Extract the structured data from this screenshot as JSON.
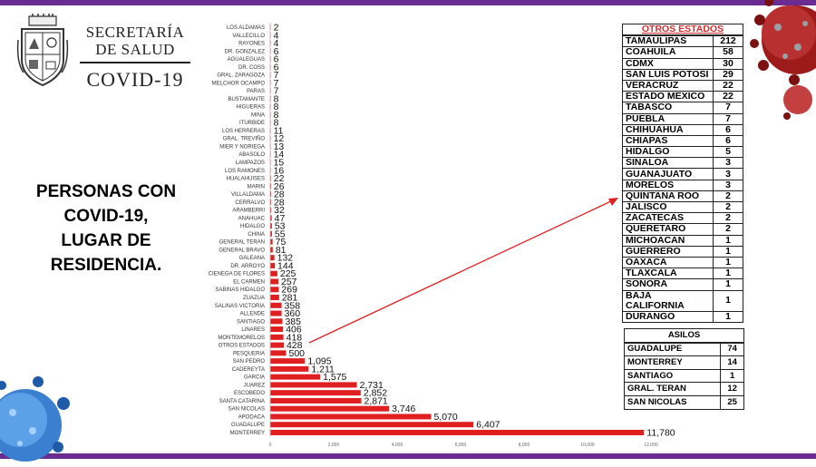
{
  "header": {
    "org_line1": "SECRETARÍA",
    "org_line2": "DE SALUD",
    "org_line3": "COVID-19"
  },
  "headline": {
    "line1": "PERSONAS CON",
    "line2": "COVID-19,",
    "line3": "LUGAR DE",
    "line4": "RESIDENCIA."
  },
  "chart_data": {
    "type": "bar",
    "orientation": "horizontal",
    "categories": [
      "LOS ALDAMAS",
      "VALLECILLO",
      "RAYONES",
      "DR. GONZALEZ",
      "AGUALEGUAS",
      "DR. COSS",
      "GRAL. ZARAGOZA",
      "MELCHOR OCAMPO",
      "PARAS",
      "BUSTAMANTE",
      "HIGUERAS",
      "MINA",
      "ITURBIDE",
      "LOS HERRERAS",
      "GRAL. TREVIÑO",
      "MIER Y NORIEGA",
      "ABASOLO",
      "LAMPAZOS",
      "LOS RAMONES",
      "HUALAHUISES",
      "MARIN",
      "VILLALDAMA",
      "CERRALVO",
      "ARAMBERRI",
      "ANAHUAC",
      "HIDALGO",
      "CHINA",
      "GENERAL TERAN",
      "GENERAL BRAVO",
      "GALEANA",
      "DR. ARROYO",
      "CIENEGA DE FLORES",
      "EL CARMEN",
      "SABINAS HIDALGO",
      "ZUAZUA",
      "SALINAS VICTORIA",
      "ALLENDE",
      "SANTIAGO",
      "LINARES",
      "MONTEMORELOS",
      "OTROS ESTADOS",
      "PESQUERIA",
      "SAN PEDRO",
      "CADEREYTA",
      "GARCIA",
      "JUAREZ",
      "ESCOBEDO",
      "SANTA CATARINA",
      "SAN NICOLAS",
      "APODACA",
      "GUADALUPE",
      "MONTERREY"
    ],
    "values": [
      2,
      4,
      4,
      6,
      6,
      6,
      7,
      7,
      7,
      8,
      8,
      8,
      8,
      11,
      12,
      13,
      14,
      15,
      16,
      22,
      26,
      28,
      28,
      32,
      47,
      53,
      55,
      75,
      81,
      132,
      144,
      225,
      257,
      269,
      281,
      358,
      360,
      385,
      406,
      418,
      428,
      500,
      1095,
      1211,
      1575,
      2731,
      2852,
      2871,
      3746,
      5070,
      6407,
      11780
    ],
    "value_labels": [
      "2",
      "4",
      "4",
      "6",
      "6",
      "6",
      "7",
      "7",
      "7",
      "8",
      "8",
      "8",
      "8",
      "11",
      "12",
      "13",
      "14",
      "15",
      "16",
      "22",
      "26",
      "28",
      "28",
      "32",
      "47",
      "53",
      "55",
      "75",
      "81",
      "132",
      "144",
      "225",
      "257",
      "269",
      "281",
      "358",
      "360",
      "385",
      "406",
      "418",
      "428",
      "500",
      "1,095",
      "1,211",
      "1,575",
      "2,731",
      "2,852",
      "2,871",
      "3,746",
      "5,070",
      "6,407",
      "11,780"
    ],
    "xlim": [
      0,
      12000
    ],
    "x_ticks": [
      "0",
      "2,000",
      "4,000",
      "6,000",
      "8,000",
      "10,000",
      "12,000"
    ],
    "bar_color": "#e02020",
    "annotation": "arrow from OTROS ESTADOS to the OTROS ESTADOS table"
  },
  "otros_estados": {
    "title": "OTROS ESTADOS",
    "rows": [
      {
        "name": "TAMAULIPAS",
        "count": "212"
      },
      {
        "name": "COAHUILA",
        "count": "58"
      },
      {
        "name": "CDMX",
        "count": "30"
      },
      {
        "name": "SAN LUIS POTOSI",
        "count": "29"
      },
      {
        "name": "VERACRUZ",
        "count": "22"
      },
      {
        "name": "ESTADO MEXICO",
        "count": "22"
      },
      {
        "name": "TABASCO",
        "count": "7"
      },
      {
        "name": "PUEBLA",
        "count": "7"
      },
      {
        "name": "CHIHUAHUA",
        "count": "6"
      },
      {
        "name": "CHIAPAS",
        "count": "6"
      },
      {
        "name": "HIDALGO",
        "count": "5"
      },
      {
        "name": "SINALOA",
        "count": "3"
      },
      {
        "name": "GUANAJUATO",
        "count": "3"
      },
      {
        "name": "MORELOS",
        "count": "3"
      },
      {
        "name": "QUINTANA ROO",
        "count": "2"
      },
      {
        "name": "JALISCO",
        "count": "2"
      },
      {
        "name": "ZACATECAS",
        "count": "2"
      },
      {
        "name": "QUERETARO",
        "count": "2"
      },
      {
        "name": "MICHOACAN",
        "count": "1"
      },
      {
        "name": "GUERRERO",
        "count": "1"
      },
      {
        "name": "OAXACA",
        "count": "1"
      },
      {
        "name": "TLAXCALA",
        "count": "1"
      },
      {
        "name": "SONORA",
        "count": "1"
      },
      {
        "name": "BAJA CALIFORNIA",
        "count": "1"
      },
      {
        "name": "DURANGO",
        "count": "1"
      }
    ]
  },
  "asilos": {
    "title": "ASILOS",
    "rows": [
      {
        "name": "GUADALUPE",
        "count": "74"
      },
      {
        "name": "MONTERREY",
        "count": "14"
      },
      {
        "name": "SANTIAGO",
        "count": "1"
      },
      {
        "name": "GRAL. TERAN",
        "count": "12"
      },
      {
        "name": "SAN NICOLAS",
        "count": "25"
      }
    ]
  },
  "colors": {
    "frame": "#6a2c91",
    "bars": "#e02020",
    "otros_title": "#d32f2f"
  }
}
